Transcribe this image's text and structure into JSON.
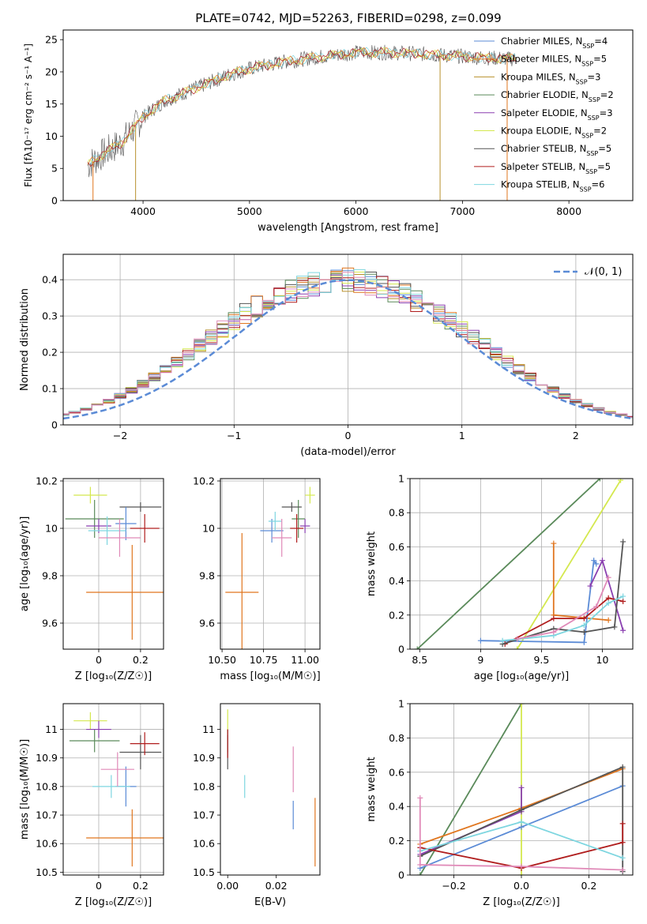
{
  "title": "PLATE=0742, MJD=52263, FIBERID=0298, z=0.099",
  "colors": {
    "Chabrier MILES": "#5b8bd6",
    "Salpeter MILES": "#e0761f",
    "Kroupa MILES": "#b8902c",
    "Chabrier ELODIE": "#5a8a5a",
    "Salpeter ELODIE": "#8a3fb0",
    "Kroupa ELODIE": "#d4e84e",
    "Chabrier STELIB": "#555555",
    "Salpeter STELIB": "#b01d1d",
    "Kroupa STELIB": "#7ed6e0",
    "pink": "#e08ab8",
    "normal": "#5b8bd6"
  },
  "chart_data": [
    {
      "type": "line",
      "panel": "spectrum",
      "xlabel": "wavelength [Angstrom, rest frame]",
      "ylabel": "Flux [fλ10⁻¹⁷ erg cm⁻² s⁻¹ A⁻¹]",
      "xlim": [
        3250,
        8600
      ],
      "ylim": [
        0,
        26.5
      ],
      "xticks": [
        4000,
        5000,
        6000,
        7000,
        8000
      ],
      "yticks": [
        0,
        5,
        10,
        15,
        20,
        25
      ],
      "legend_position": "right",
      "envelope": {
        "x": [
          3480,
          3600,
          3800,
          4000,
          4200,
          4500,
          4800,
          5000,
          5300,
          5600,
          6000,
          6300,
          6600,
          6900,
          7200,
          7500
        ],
        "y": [
          5.5,
          7.0,
          9.0,
          13.0,
          15.5,
          17.5,
          19.5,
          20.5,
          21.5,
          22.2,
          23.0,
          23.0,
          22.8,
          22.5,
          22.2,
          22.0
        ]
      },
      "legend": [
        {
          "label": "Chabrier MILES, N",
          "n": "4",
          "color_key": "Chabrier MILES"
        },
        {
          "label": "Salpeter MILES, N",
          "n": "5",
          "color_key": "Salpeter MILES"
        },
        {
          "label": "Kroupa MILES, N",
          "n": "3",
          "color_key": "Kroupa MILES"
        },
        {
          "label": "Chabrier ELODIE, N",
          "n": "2",
          "color_key": "Chabrier ELODIE"
        },
        {
          "label": "Salpeter ELODIE, N",
          "n": "3",
          "color_key": "Salpeter ELODIE"
        },
        {
          "label": "Kroupa ELODIE, N",
          "n": "2",
          "color_key": "Kroupa ELODIE"
        },
        {
          "label": "Chabrier STELIB, N",
          "n": "5",
          "color_key": "Chabrier STELIB"
        },
        {
          "label": "Salpeter STELIB, N",
          "n": "5",
          "color_key": "Salpeter STELIB"
        },
        {
          "label": "Kroupa STELIB, N",
          "n": "6",
          "color_key": "Kroupa STELIB"
        }
      ],
      "legend_sub": "SSP",
      "drop_lines": [
        {
          "x": 3530,
          "color_key": "Salpeter MILES"
        },
        {
          "x": 3930,
          "color_key": "Kroupa MILES"
        },
        {
          "x": 6790,
          "color_key": "Kroupa MILES"
        },
        {
          "x": 7420,
          "color_key": "Salpeter MILES"
        }
      ]
    },
    {
      "type": "line",
      "panel": "residuals",
      "xlabel": "(data-model)/error",
      "ylabel": "Normed distribution",
      "xlim": [
        -2.5,
        2.5
      ],
      "ylim": [
        0,
        0.47
      ],
      "xticks": [
        -2,
        -1,
        0,
        1,
        2
      ],
      "xtick_labels": [
        "−2",
        "−1",
        "0",
        "1",
        "2"
      ],
      "yticks": [
        0.0,
        0.1,
        0.2,
        0.3,
        0.4
      ],
      "legend": "𝒩(0, 1)",
      "legend_position": "top-right",
      "normal_curve": {
        "mu": 0,
        "sigma": 1
      },
      "hist_base": [
        0.018,
        0.022,
        0.028,
        0.035,
        0.044,
        0.054,
        0.066,
        0.08,
        0.096,
        0.113,
        0.132,
        0.153,
        0.174,
        0.196,
        0.219,
        0.242,
        0.264,
        0.286,
        0.307,
        0.326,
        0.343,
        0.358,
        0.371,
        0.381,
        0.389,
        0.394,
        0.397,
        0.397,
        0.394,
        0.389,
        0.381,
        0.371,
        0.358,
        0.343,
        0.326,
        0.307,
        0.286,
        0.264,
        0.242,
        0.219,
        0.196,
        0.174,
        0.153,
        0.132,
        0.113,
        0.096,
        0.08,
        0.066,
        0.054,
        0.044,
        0.035,
        0.028,
        0.022,
        0.018,
        0.015,
        0.013,
        0.011,
        0.01
      ],
      "hist_bin_width": 0.1
    },
    {
      "type": "scatter",
      "panel": "age-vs-Z",
      "xlabel": "Z [log₁₀(Z/Z☉)]",
      "ylabel": "age [log₁₀(age/yr)]",
      "xlim": [
        -0.17,
        0.31
      ],
      "ylim": [
        9.49,
        10.21
      ],
      "xticks": [
        0.0,
        0.2
      ],
      "yticks": [
        9.6,
        9.8,
        10.0,
        10.2
      ],
      "points": [
        {
          "x": -0.04,
          "y": 10.14,
          "ex": 0.08,
          "ey": 0.035,
          "color_key": "Kroupa ELODIE"
        },
        {
          "x": -0.02,
          "y": 10.04,
          "ex": 0.14,
          "ey": 0.08,
          "color_key": "Chabrier ELODIE"
        },
        {
          "x": 0.2,
          "y": 10.09,
          "ex": 0.1,
          "ey": 0.02,
          "color_key": "Chabrier STELIB"
        },
        {
          "x": 0.22,
          "y": 10.0,
          "ex": 0.07,
          "ey": 0.06,
          "color_key": "Salpeter STELIB"
        },
        {
          "x": 0.0,
          "y": 10.01,
          "ex": 0.06,
          "ey": 0.03,
          "color_key": "Salpeter ELODIE"
        },
        {
          "x": 0.13,
          "y": 10.02,
          "ex": 0.05,
          "ey": 0.07,
          "color_key": "Chabrier MILES"
        },
        {
          "x": 0.04,
          "y": 9.99,
          "ex": 0.09,
          "ey": 0.06,
          "color_key": "Kroupa STELIB"
        },
        {
          "x": 0.1,
          "y": 9.96,
          "ex": 0.1,
          "ey": 0.08,
          "color_key": "pink"
        },
        {
          "x": 0.16,
          "y": 9.73,
          "ex": 0.22,
          "ey": 0.2,
          "color_key": "Salpeter MILES"
        }
      ]
    },
    {
      "type": "scatter",
      "panel": "age-vs-mass",
      "xlabel": "mass [log₁₀(M/M☉)]",
      "ylabel": "",
      "xlim": [
        10.49,
        11.09
      ],
      "ylim": [
        9.49,
        10.21
      ],
      "xticks": [
        10.5,
        10.75,
        11.0
      ],
      "xtick_labels": [
        "10.50",
        "10.75",
        "11.00"
      ],
      "yticks": [
        9.6,
        9.8,
        10.0,
        10.2
      ],
      "points": [
        {
          "x": 11.03,
          "y": 10.14,
          "ex": 0.03,
          "ey": 0.035,
          "color_key": "Kroupa ELODIE"
        },
        {
          "x": 10.96,
          "y": 10.04,
          "ex": 0.04,
          "ey": 0.08,
          "color_key": "Chabrier ELODIE"
        },
        {
          "x": 10.92,
          "y": 10.09,
          "ex": 0.06,
          "ey": 0.02,
          "color_key": "Chabrier STELIB"
        },
        {
          "x": 10.95,
          "y": 10.0,
          "ex": 0.04,
          "ey": 0.06,
          "color_key": "Salpeter STELIB"
        },
        {
          "x": 11.0,
          "y": 10.01,
          "ex": 0.03,
          "ey": 0.03,
          "color_key": "Salpeter ELODIE"
        },
        {
          "x": 10.8,
          "y": 9.99,
          "ex": 0.07,
          "ey": 0.05,
          "color_key": "Chabrier MILES"
        },
        {
          "x": 10.82,
          "y": 10.03,
          "ex": 0.04,
          "ey": 0.04,
          "color_key": "Kroupa STELIB"
        },
        {
          "x": 10.86,
          "y": 9.96,
          "ex": 0.06,
          "ey": 0.08,
          "color_key": "pink"
        },
        {
          "x": 10.62,
          "y": 9.73,
          "ex": 0.1,
          "ey": 0.25,
          "color_key": "Salpeter MILES"
        }
      ]
    },
    {
      "type": "line",
      "panel": "mass-weight-vs-age",
      "xlabel": "age [log₁₀(age/yr)]",
      "ylabel": "mass weight",
      "xlim": [
        8.42,
        10.25
      ],
      "ylim": [
        0,
        1
      ],
      "xticks": [
        8.5,
        9.0,
        9.5,
        10.0
      ],
      "yticks": [
        0.0,
        0.2,
        0.4,
        0.6,
        0.8,
        1.0
      ],
      "series": [
        {
          "color_key": "Chabrier ELODIE",
          "x": [
            8.48,
            9.98
          ],
          "y": [
            0.0,
            1.0
          ]
        },
        {
          "color_key": "Kroupa ELODIE",
          "x": [
            9.3,
            10.15
          ],
          "y": [
            0.0,
            0.99
          ]
        },
        {
          "color_key": "Salpeter MILES",
          "x": [
            9.6,
            9.6,
            10.05
          ],
          "y": [
            0.62,
            0.2,
            0.17
          ]
        },
        {
          "color_key": "Chabrier MILES",
          "x": [
            9.0,
            9.85,
            9.93,
            9.95
          ],
          "y": [
            0.05,
            0.04,
            0.52,
            0.5
          ]
        },
        {
          "color_key": "Salpeter ELODIE",
          "x": [
            9.9,
            10.0,
            10.17
          ],
          "y": [
            0.37,
            0.52,
            0.11
          ]
        },
        {
          "color_key": "Salpeter STELIB",
          "x": [
            9.2,
            9.6,
            9.85,
            10.05,
            10.17
          ],
          "y": [
            0.03,
            0.18,
            0.18,
            0.3,
            0.28
          ]
        },
        {
          "color_key": "Chabrier STELIB",
          "x": [
            9.18,
            9.6,
            9.85,
            10.1,
            10.17
          ],
          "y": [
            0.03,
            0.12,
            0.1,
            0.13,
            0.63
          ]
        },
        {
          "color_key": "Kroupa STELIB",
          "x": [
            9.18,
            9.6,
            9.85,
            10.05,
            10.17
          ],
          "y": [
            0.05,
            0.08,
            0.14,
            0.27,
            0.31
          ]
        },
        {
          "color_key": "pink",
          "x": [
            9.3,
            9.6,
            9.95,
            10.05
          ],
          "y": [
            0.06,
            0.1,
            0.25,
            0.42
          ]
        }
      ]
    },
    {
      "type": "scatter",
      "panel": "mass-vs-Z",
      "xlabel": "Z [log₁₀(Z/Z☉)]",
      "ylabel": "mass [log₁₀(M/M☉)]",
      "xlim": [
        -0.17,
        0.31
      ],
      "ylim": [
        10.49,
        11.09
      ],
      "xticks": [
        0.0,
        0.2
      ],
      "yticks": [
        10.5,
        10.6,
        10.7,
        10.8,
        10.9,
        11.0
      ],
      "points": [
        {
          "x": -0.04,
          "y": 11.03,
          "ex": 0.08,
          "ey": 0.03,
          "color_key": "Kroupa ELODIE"
        },
        {
          "x": -0.02,
          "y": 10.96,
          "ex": 0.12,
          "ey": 0.04,
          "color_key": "Chabrier ELODIE"
        },
        {
          "x": 0.2,
          "y": 10.92,
          "ex": 0.1,
          "ey": 0.06,
          "color_key": "Chabrier STELIB"
        },
        {
          "x": 0.22,
          "y": 10.95,
          "ex": 0.07,
          "ey": 0.04,
          "color_key": "Salpeter STELIB"
        },
        {
          "x": 0.0,
          "y": 11.0,
          "ex": 0.06,
          "ey": 0.03,
          "color_key": "Salpeter ELODIE"
        },
        {
          "x": 0.13,
          "y": 10.8,
          "ex": 0.05,
          "ey": 0.07,
          "color_key": "Chabrier MILES"
        },
        {
          "x": 0.06,
          "y": 10.8,
          "ex": 0.09,
          "ey": 0.04,
          "color_key": "Kroupa STELIB"
        },
        {
          "x": 0.09,
          "y": 10.86,
          "ex": 0.08,
          "ey": 0.06,
          "color_key": "pink"
        },
        {
          "x": 0.16,
          "y": 10.62,
          "ex": 0.22,
          "ey": 0.1,
          "color_key": "Salpeter MILES"
        }
      ]
    },
    {
      "type": "scatter",
      "panel": "mass-vs-EBV",
      "xlabel": "E(B-V)",
      "ylabel": "",
      "xlim": [
        -0.003,
        0.038
      ],
      "ylim": [
        10.49,
        11.09
      ],
      "xticks": [
        0.0,
        0.02
      ],
      "xtick_labels": [
        "0.00",
        "0.02"
      ],
      "yticks": [
        10.5,
        10.6,
        10.7,
        10.8,
        10.9,
        11.0
      ],
      "points": [
        {
          "x": 0.0,
          "y": 11.03,
          "ex": 0,
          "ey": 0.04,
          "color_key": "Kroupa ELODIE"
        },
        {
          "x": 0.0,
          "y": 10.96,
          "ex": 0,
          "ey": 0.04,
          "color_key": "Chabrier ELODIE"
        },
        {
          "x": 0.0,
          "y": 10.92,
          "ex": 0,
          "ey": 0.06,
          "color_key": "Chabrier STELIB"
        },
        {
          "x": 0.0,
          "y": 10.95,
          "ex": 0,
          "ey": 0.05,
          "color_key": "Salpeter STELIB"
        },
        {
          "x": 0.007,
          "y": 10.8,
          "ex": 0,
          "ey": 0.04,
          "color_key": "Kroupa STELIB"
        },
        {
          "x": 0.027,
          "y": 10.86,
          "ex": 0,
          "ey": 0.08,
          "color_key": "pink"
        },
        {
          "x": 0.027,
          "y": 10.7,
          "ex": 0,
          "ey": 0.05,
          "color_key": "Chabrier MILES"
        },
        {
          "x": 0.036,
          "y": 10.64,
          "ex": 0,
          "ey": 0.12,
          "color_key": "Salpeter MILES"
        }
      ]
    },
    {
      "type": "line",
      "panel": "mass-weight-vs-Z",
      "xlabel": "Z [log₁₀(Z/Z☉)]",
      "ylabel": "mass weight",
      "xlim": [
        -0.33,
        0.33
      ],
      "ylim": [
        0,
        1
      ],
      "xticks": [
        -0.2,
        0.0,
        0.2
      ],
      "xtick_labels": [
        "−0.2",
        "0.0",
        "0.2"
      ],
      "yticks": [
        0.0,
        0.2,
        0.4,
        0.6,
        0.8,
        1.0
      ],
      "series": [
        {
          "color_key": "Chabrier ELODIE",
          "x": [
            -0.3,
            0.0
          ],
          "y": [
            0.0,
            1.0
          ]
        },
        {
          "color_key": "Kroupa ELODIE",
          "x": [
            0.0,
            0.0
          ],
          "y": [
            1.0,
            0.0
          ]
        },
        {
          "color_key": "Salpeter MILES",
          "x": [
            -0.3,
            0.0,
            0.3
          ],
          "y": [
            0.18,
            0.39,
            0.62
          ]
        },
        {
          "color_key": "Chabrier MILES",
          "x": [
            -0.3,
            0.0,
            0.3
          ],
          "y": [
            0.04,
            0.28,
            0.52
          ]
        },
        {
          "color_key": "Salpeter ELODIE",
          "x": [
            -0.3,
            0.0,
            0.0
          ],
          "y": [
            0.12,
            0.37,
            0.51
          ]
        },
        {
          "color_key": "Chabrier STELIB",
          "x": [
            -0.3,
            0.0,
            0.3,
            0.3
          ],
          "y": [
            0.11,
            0.38,
            0.63,
            0.02
          ]
        },
        {
          "color_key": "Salpeter STELIB",
          "x": [
            -0.3,
            0.0,
            0.3,
            0.3
          ],
          "y": [
            0.16,
            0.04,
            0.19,
            0.3
          ]
        },
        {
          "color_key": "Kroupa STELIB",
          "x": [
            -0.3,
            0.0,
            0.3
          ],
          "y": [
            0.14,
            0.31,
            0.1
          ]
        },
        {
          "color_key": "pink",
          "x": [
            -0.3,
            -0.3,
            0.0,
            0.3
          ],
          "y": [
            0.45,
            0.06,
            0.05,
            0.03
          ]
        }
      ]
    }
  ]
}
